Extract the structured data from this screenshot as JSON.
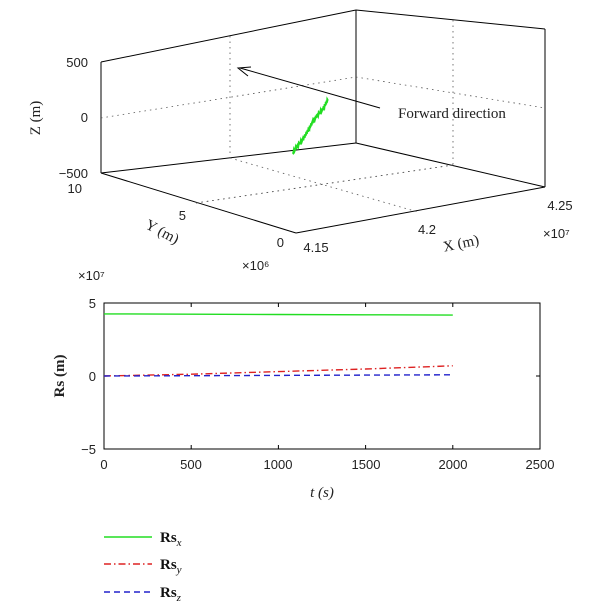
{
  "chart_data": [
    {
      "type": "line",
      "projection": "3d",
      "xlabel": "X (m)",
      "ylabel": "Y (m)",
      "zlabel": "Z (m)",
      "x_multiplier": "×10⁷",
      "y_multiplier": "×10⁶",
      "xlim": [
        4.15,
        4.25
      ],
      "ylim": [
        0,
        10
      ],
      "zlim": [
        -500,
        500
      ],
      "x_ticks": [
        "4.15",
        "4.2",
        "4.25"
      ],
      "y_ticks": [
        "0",
        "5",
        "10"
      ],
      "z_ticks": [
        "500",
        "0",
        "−500"
      ],
      "annotation": "Forward direction",
      "series": [
        {
          "color": "#22dd22",
          "points": [
            [
              4.151,
              0.3,
              200
            ],
            [
              4.16,
              1.2,
              180
            ],
            [
              4.17,
              2.2,
              140
            ],
            [
              4.18,
              3.3,
              95
            ],
            [
              4.19,
              4.4,
              50
            ],
            [
              4.2,
              5.5,
              5
            ],
            [
              4.21,
              6.6,
              -50
            ],
            [
              4.22,
              7.6,
              -95
            ],
            [
              4.23,
              8.7,
              -140
            ],
            [
              4.238,
              9.6,
              -180
            ]
          ]
        }
      ]
    },
    {
      "type": "line",
      "xlabel": "t (s)",
      "ylabel": "Rs (m)",
      "y_multiplier": "×10⁷",
      "xlim": [
        0,
        2500
      ],
      "ylim": [
        -5,
        5
      ],
      "x_ticks": [
        "0",
        "500",
        "1000",
        "1500",
        "2000",
        "2500"
      ],
      "y_ticks": [
        "5",
        "0",
        "−5"
      ],
      "legend_position": "bottom",
      "series": [
        {
          "name_main": "Rs",
          "name_sub": "x",
          "color": "#22dd22",
          "dash": "solid",
          "x": [
            0,
            500,
            1000,
            1500,
            2000
          ],
          "y": [
            4.25,
            4.23,
            4.21,
            4.19,
            4.17
          ]
        },
        {
          "name_main": "Rs",
          "name_sub": "y",
          "color": "#dd2222",
          "dash": "dashdot",
          "x": [
            0,
            500,
            1000,
            1500,
            2000
          ],
          "y": [
            0.0,
            0.12,
            0.3,
            0.48,
            0.7
          ]
        },
        {
          "name_main": "Rs",
          "name_sub": "z",
          "color": "#2222cc",
          "dash": "dashed",
          "x": [
            0,
            500,
            1000,
            1500,
            2000
          ],
          "y": [
            0.0,
            0.02,
            0.04,
            0.06,
            0.08
          ]
        }
      ]
    }
  ]
}
